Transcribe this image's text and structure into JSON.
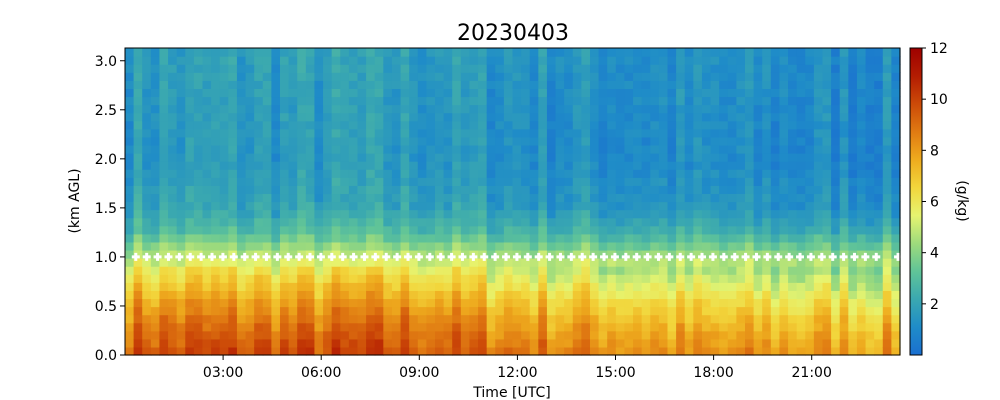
{
  "chart_data": {
    "type": "heatmap",
    "title": "20230403",
    "xlabel": "Time [UTC]",
    "ylabel": "(km AGL)",
    "colorbar_label": "(g/kg)",
    "x_ticks": [
      {
        "hours": 3,
        "label": "03:00"
      },
      {
        "hours": 6,
        "label": "06:00"
      },
      {
        "hours": 9,
        "label": "09:00"
      },
      {
        "hours": 12,
        "label": "12:00"
      },
      {
        "hours": 15,
        "label": "15:00"
      },
      {
        "hours": 18,
        "label": "18:00"
      },
      {
        "hours": 21,
        "label": "21:00"
      }
    ],
    "xlim_hours": [
      0.0,
      23.7
    ],
    "y_ticks": [
      0.0,
      0.5,
      1.0,
      1.5,
      2.0,
      2.5,
      3.0
    ],
    "y_tick_labels": [
      "0.0",
      "0.5",
      "1.0",
      "1.5",
      "2.0",
      "2.5",
      "3.0"
    ],
    "ylim_km": [
      0.0,
      3.13
    ],
    "colorbar_ticks": [
      2,
      4,
      6,
      8,
      10,
      12
    ],
    "colorbar_tick_labels": [
      "2",
      "4",
      "6",
      "8",
      "10",
      "12"
    ],
    "clim": [
      0,
      12
    ],
    "colormap": [
      "#1a6fd0",
      "#1f8cc8",
      "#3aa8b0",
      "#60c498",
      "#9edb7c",
      "#e6f470",
      "#f2d63c",
      "#eeab1e",
      "#e07a12",
      "#cc4a08",
      "#b31c02",
      "#9e0000"
    ],
    "profile_heights_km": [
      0.0,
      0.25,
      0.5,
      0.75,
      1.0,
      1.25,
      1.5,
      2.0,
      2.5,
      3.13
    ],
    "profile_mixing_ratio_gkg": [
      9.4,
      8.6,
      7.6,
      6.3,
      4.8,
      2.8,
      1.8,
      1.4,
      1.5,
      1.6
    ],
    "marker_series": {
      "name": "",
      "height_km": 1.0,
      "start_hours": 0.33,
      "step_hours": 0.333,
      "gap_hours": [
        23.2,
        23.5
      ],
      "color": "#ffffff"
    }
  }
}
